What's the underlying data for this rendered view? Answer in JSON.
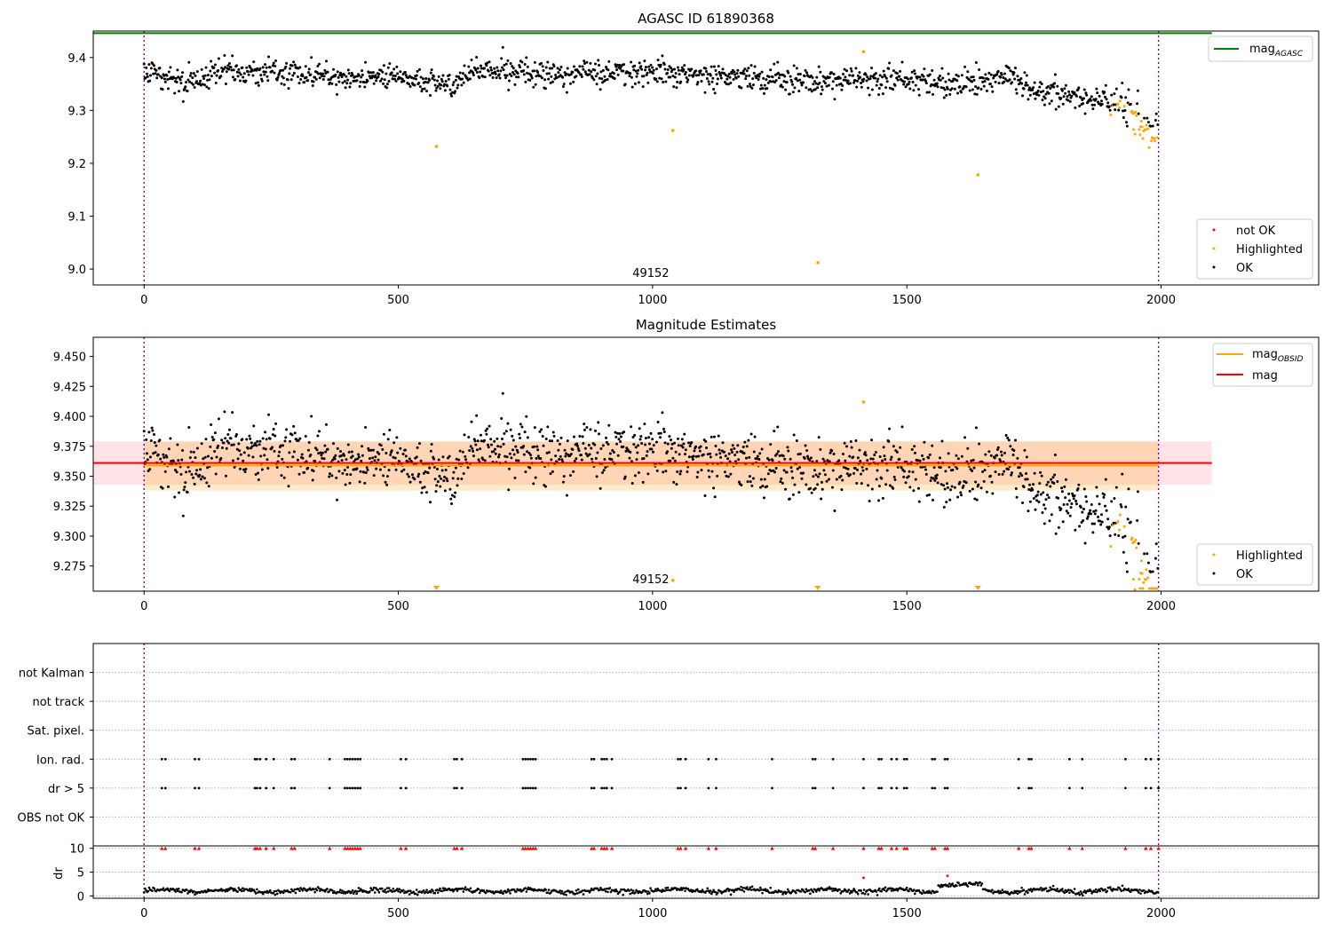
{
  "chart_data": [
    {
      "type": "scatter",
      "title": "AGASC ID 61890368",
      "xlim": [
        -100,
        2310
      ],
      "ylim": [
        8.97,
        9.45
      ],
      "xticks": [
        0,
        500,
        1000,
        1500,
        2000
      ],
      "yticks": [
        9.0,
        9.1,
        9.2,
        9.3,
        9.4
      ],
      "ytick_labels": [
        "9.0",
        "9.1",
        "9.2",
        "9.3",
        "9.4"
      ],
      "annotation": {
        "text": "49152",
        "x": 1000
      },
      "vlines": [
        0,
        1995
      ],
      "hline": {
        "name": "mag_AGASC",
        "label": "mag",
        "subscript": "AGASC",
        "value": 9.446,
        "x_end": 2100,
        "color": "#008000"
      },
      "trend": [
        [
          0,
          9.375
        ],
        [
          40,
          9.36
        ],
        [
          100,
          9.35
        ],
        [
          150,
          9.375
        ],
        [
          300,
          9.37
        ],
        [
          400,
          9.36
        ],
        [
          500,
          9.365
        ],
        [
          560,
          9.355
        ],
        [
          610,
          9.345
        ],
        [
          650,
          9.375
        ],
        [
          700,
          9.375
        ],
        [
          800,
          9.37
        ],
        [
          1000,
          9.372
        ],
        [
          1200,
          9.362
        ],
        [
          1300,
          9.355
        ],
        [
          1420,
          9.362
        ],
        [
          1600,
          9.348
        ],
        [
          1650,
          9.356
        ],
        [
          1700,
          9.37
        ],
        [
          1740,
          9.345
        ],
        [
          1800,
          9.33
        ],
        [
          1900,
          9.318
        ],
        [
          1935,
          9.31
        ],
        [
          1960,
          9.28
        ],
        [
          1995,
          9.245
        ]
      ],
      "highlighted_points": [
        [
          575,
          9.232
        ],
        [
          1040,
          9.262
        ],
        [
          1325,
          9.012
        ],
        [
          1415,
          9.411
        ],
        [
          1640,
          9.178
        ]
      ],
      "legend": {
        "position": "bottom-right",
        "entries": [
          {
            "label": "not OK",
            "color": "#ff0000"
          },
          {
            "label": "Highlighted",
            "color": "#ffa500"
          },
          {
            "label": "OK",
            "color": "#000000"
          }
        ]
      },
      "legend_top": {
        "position": "top-right",
        "entries": [
          {
            "label": "mag",
            "subscript": "AGASC",
            "color": "#008000"
          }
        ]
      }
    },
    {
      "type": "scatter",
      "title": "Magnitude Estimates",
      "xlim": [
        -100,
        2310
      ],
      "ylim": [
        9.254,
        9.466
      ],
      "xticks": [
        0,
        500,
        1000,
        1500,
        2000
      ],
      "yticks": [
        9.275,
        9.3,
        9.325,
        9.35,
        9.375,
        9.4,
        9.425,
        9.45
      ],
      "ytick_labels": [
        "9.275",
        "9.300",
        "9.325",
        "9.350",
        "9.375",
        "9.400",
        "9.425",
        "9.450"
      ],
      "annotation": {
        "text": "49152",
        "x": 1000
      },
      "vlines": [
        0,
        1995
      ],
      "mag": {
        "value": 9.361,
        "band": [
          9.343,
          9.379
        ],
        "x_end": 2100,
        "color": "#ff0000"
      },
      "mag_obsid": {
        "value": 9.359,
        "band": [
          9.338,
          9.379
        ],
        "x_end": 1995,
        "color": "#ffa500"
      },
      "highlighted_points": [
        [
          1040,
          9.263
        ],
        [
          1415,
          9.412
        ]
      ],
      "offscale_markers": [
        575,
        1325,
        1640
      ],
      "legend": {
        "position": "bottom-right",
        "entries": [
          {
            "label": "Highlighted",
            "color": "#ffa500"
          },
          {
            "label": "OK",
            "color": "#000000"
          }
        ]
      },
      "legend_top": {
        "position": "top-right",
        "entries": [
          {
            "label": "mag",
            "subscript": "OBSID",
            "color": "#ffa500"
          },
          {
            "label": "mag",
            "color": "#ff0000"
          }
        ]
      }
    },
    {
      "type": "scatter",
      "title": "",
      "xlim": [
        -100,
        2310
      ],
      "xticks": [
        0,
        500,
        1000,
        1500,
        2000
      ],
      "flag_rows": [
        "not Kalman",
        "not track",
        "Sat. pixel.",
        "Ion. rad.",
        "dr > 5",
        "OBS not OK"
      ],
      "flag_row_values": [
        5,
        4,
        3,
        2,
        1,
        0
      ],
      "flag_ylim": [
        -1,
        6
      ],
      "flagged_x": [
        35,
        42,
        100,
        108,
        218,
        222,
        228,
        240,
        255,
        290,
        296,
        365,
        395,
        400,
        405,
        410,
        415,
        420,
        425,
        505,
        515,
        610,
        615,
        625,
        745,
        750,
        755,
        760,
        765,
        770,
        880,
        885,
        900,
        905,
        910,
        920,
        1050,
        1055,
        1065,
        1110,
        1125,
        1235,
        1315,
        1320,
        1355,
        1415,
        1445,
        1450,
        1470,
        1480,
        1495,
        1500,
        1550,
        1555,
        1575,
        1580,
        1720,
        1740,
        1745,
        1820,
        1845,
        1930,
        1970,
        1980,
        1995
      ],
      "dr_ylabel": "dr",
      "dr_yticks": [
        0,
        5,
        10
      ],
      "dr_ylim": [
        -0.5,
        10.5
      ],
      "dr_outliers": [
        [
          1415,
          3.8
        ],
        [
          1580,
          4.2
        ]
      ],
      "dr_big_x": [
        1415,
        1580
      ]
    }
  ]
}
